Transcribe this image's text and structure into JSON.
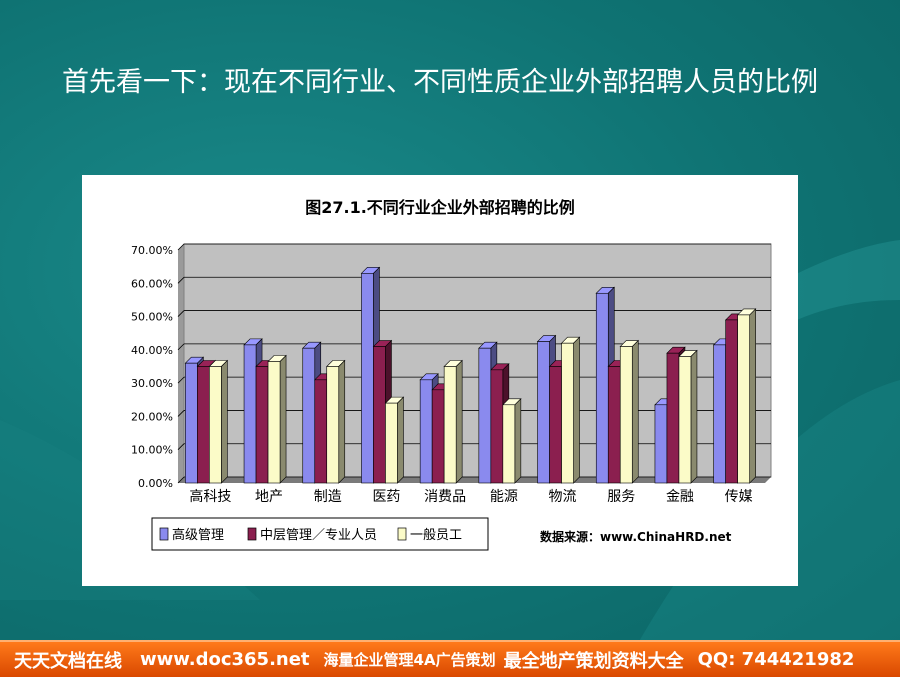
{
  "headline": "首先看一下：现在不同行业、不同性质企业外部招聘人员的比例",
  "chart_data": {
    "type": "bar",
    "title": "图27.1.不同行业企业外部招聘的比例",
    "categories": [
      "高科技",
      "地产",
      "制造",
      "医药",
      "消费品",
      "能源",
      "物流",
      "服务",
      "金融",
      "传媒"
    ],
    "series": [
      {
        "name": "高级管理",
        "color": "#8a8aee",
        "values": [
          36,
          41.5,
          40.5,
          63,
          31,
          40.5,
          42.5,
          57,
          23.5,
          41.5
        ]
      },
      {
        "name": "中层管理／专业人员",
        "color": "#8b1f4f",
        "values": [
          35,
          35,
          31,
          41,
          28,
          34,
          35,
          35,
          39,
          49
        ]
      },
      {
        "name": "一般员工",
        "color": "#fbfbc8",
        "values": [
          35,
          36.5,
          35,
          24,
          35,
          23.5,
          42,
          41,
          38,
          50.5
        ]
      }
    ],
    "yticks": [
      "70.00%",
      "60.00%",
      "50.00%",
      "40.00%",
      "30.00%",
      "20.00%",
      "10.00%",
      "0.00%"
    ],
    "ylim": [
      0,
      70
    ],
    "grid": true,
    "plot_background": "#c0c0c0",
    "legend_position": "bottom-left",
    "source_note": "数据来源：www.ChinaHRD.net"
  },
  "footer": {
    "site": "天天文档在线",
    "url": "www.doc365.net",
    "slogan1": "海量企业管理4A广告策划",
    "slogan2": "最全地产策划资料大全",
    "qq": "QQ: 744421982"
  }
}
